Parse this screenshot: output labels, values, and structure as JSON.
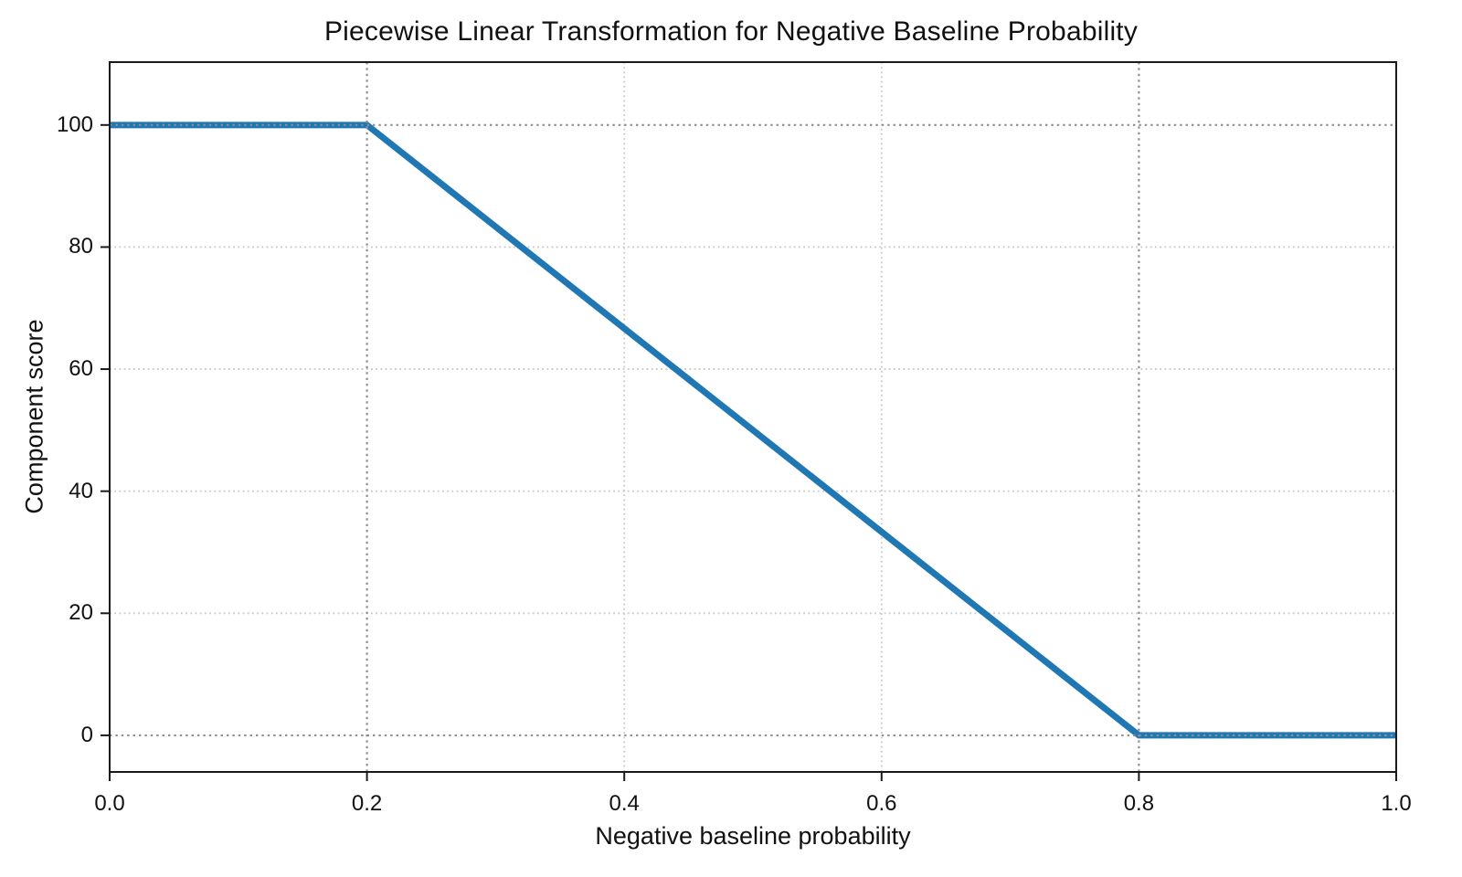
{
  "chart_data": {
    "type": "line",
    "title": "Piecewise Linear Transformation for Negative Baseline Probability",
    "xlabel": "Negative baseline probability",
    "ylabel": "Component score",
    "xlim": [
      0.0,
      1.0
    ],
    "ylim": [
      -6.0,
      110.3
    ],
    "x_ticks": [
      0.0,
      0.2,
      0.4,
      0.6,
      0.8,
      1.0
    ],
    "x_tick_labels": [
      "0.0",
      "0.2",
      "0.4",
      "0.6",
      "0.8",
      "1.0"
    ],
    "y_ticks": [
      0,
      20,
      40,
      60,
      80,
      100
    ],
    "y_tick_labels": [
      "0",
      "20",
      "40",
      "60",
      "80",
      "100"
    ],
    "grid": "dotted",
    "legend": "none",
    "series": [
      {
        "name": "component score",
        "color": "#1f77b4",
        "points": [
          [
            0.0,
            100
          ],
          [
            0.2,
            100
          ],
          [
            0.8,
            0
          ],
          [
            1.0,
            0
          ]
        ]
      }
    ],
    "reference_lines": {
      "horizontal_y": [
        0,
        100
      ],
      "vertical_x": [
        0.2,
        0.8
      ]
    },
    "colors": {
      "line": "#1f77b4",
      "grid_light": "#c9c9c9",
      "grid_dark": "#8f8f8f",
      "spine": "#1a1a1a",
      "background": "#ffffff"
    }
  }
}
